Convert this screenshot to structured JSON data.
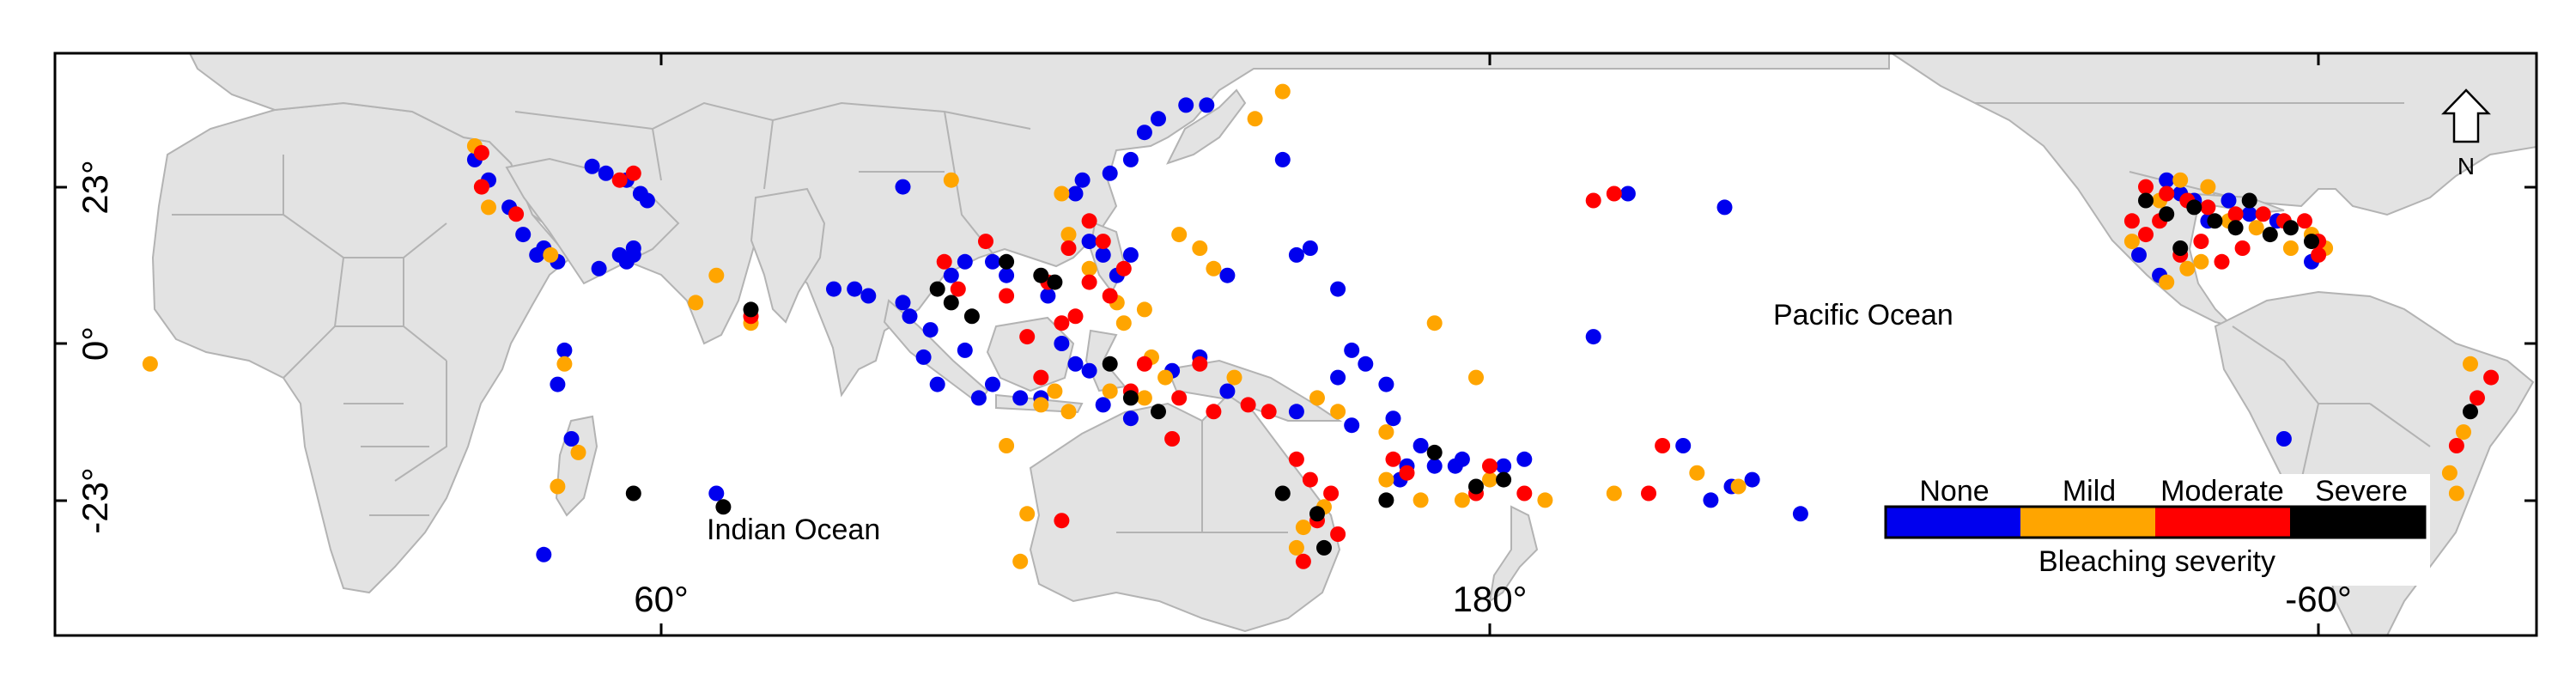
{
  "map": {
    "labels": {
      "indian_ocean": "Indian Ocean",
      "pacific_ocean": "Pacific Ocean"
    },
    "x_ticks": [
      "60°",
      "180°",
      "-60°"
    ],
    "y_ticks": [
      "23°",
      "0°",
      "-23°"
    ],
    "north_arrow_label": "N",
    "colors": {
      "land": "#e3e3e3",
      "border": "#b3b3b3",
      "frame": "#000000"
    }
  },
  "legend": {
    "title": "Bleaching severity",
    "categories": [
      {
        "label": "None",
        "color": "#0000ee"
      },
      {
        "label": "Mild",
        "color": "#ffa500"
      },
      {
        "label": "Moderate",
        "color": "#ff0000"
      },
      {
        "label": "Severe",
        "color": "#000000"
      }
    ]
  },
  "sites": {
    "none": [
      [
        33,
        27
      ],
      [
        35,
        24
      ],
      [
        38,
        20
      ],
      [
        40,
        16
      ],
      [
        43,
        14
      ],
      [
        45,
        12
      ],
      [
        42,
        13
      ],
      [
        46,
        -1
      ],
      [
        45,
        -6
      ],
      [
        47,
        -14
      ],
      [
        43,
        -31
      ],
      [
        50,
        26
      ],
      [
        52,
        25
      ],
      [
        55,
        24
      ],
      [
        57,
        22
      ],
      [
        58,
        21
      ],
      [
        54,
        13
      ],
      [
        56,
        14
      ],
      [
        51,
        11
      ],
      [
        56,
        13
      ],
      [
        55,
        12
      ],
      [
        68,
        -22
      ],
      [
        95,
        23
      ],
      [
        88,
        8
      ],
      [
        85,
        8
      ],
      [
        90,
        7
      ],
      [
        95,
        6
      ],
      [
        96,
        4
      ],
      [
        99,
        2
      ],
      [
        98,
        -2
      ],
      [
        100,
        -6
      ],
      [
        104,
        -1
      ],
      [
        106,
        -8
      ],
      [
        108,
        -6
      ],
      [
        112,
        -8
      ],
      [
        115,
        -8
      ],
      [
        120,
        -3
      ],
      [
        122,
        -4
      ],
      [
        118,
        0
      ],
      [
        116,
        7
      ],
      [
        110,
        10
      ],
      [
        108,
        12
      ],
      [
        104,
        12
      ],
      [
        102,
        10
      ],
      [
        122,
        15
      ],
      [
        124,
        13
      ],
      [
        126,
        10
      ],
      [
        128,
        13
      ],
      [
        120,
        22
      ],
      [
        121,
        24
      ],
      [
        125,
        25
      ],
      [
        128,
        27
      ],
      [
        130,
        31
      ],
      [
        132,
        33
      ],
      [
        136,
        35
      ],
      [
        139,
        35
      ],
      [
        150,
        27
      ],
      [
        142,
        10
      ],
      [
        152,
        13
      ],
      [
        154,
        14
      ],
      [
        160,
        -1
      ],
      [
        158,
        8
      ],
      [
        162,
        -3
      ],
      [
        165,
        -6
      ],
      [
        175,
        -18
      ],
      [
        176,
        -17
      ],
      [
        172,
        -18
      ],
      [
        168,
        -18
      ],
      [
        167,
        -20
      ],
      [
        185,
        -17
      ],
      [
        182,
        -18
      ],
      [
        215,
        -21
      ],
      [
        218,
        -20
      ],
      [
        212,
        -23
      ],
      [
        225,
        -25
      ],
      [
        208,
        -15
      ],
      [
        200,
        22
      ],
      [
        214,
        20
      ],
      [
        195,
        1
      ],
      [
        152,
        -10
      ],
      [
        158,
        -5
      ],
      [
        160,
        -12
      ],
      [
        170,
        -15
      ],
      [
        166,
        -11
      ],
      [
        128,
        -11
      ],
      [
        124,
        -9
      ],
      [
        134,
        -4
      ],
      [
        138,
        -2
      ],
      [
        142,
        -7
      ],
      [
        -82,
        24
      ],
      [
        -80,
        22
      ],
      [
        -78,
        21
      ],
      [
        -76,
        18
      ],
      [
        -73,
        21
      ],
      [
        -70,
        19
      ],
      [
        -66,
        18
      ],
      [
        -83,
        10
      ],
      [
        -86,
        13
      ],
      [
        -61,
        12
      ],
      [
        -65,
        -14
      ]
    ],
    "mild": [
      [
        -14,
        -3
      ],
      [
        33,
        29
      ],
      [
        34,
        23
      ],
      [
        35,
        20
      ],
      [
        44,
        13
      ],
      [
        46,
        -3
      ],
      [
        48,
        -16
      ],
      [
        45,
        -21
      ],
      [
        65,
        6
      ],
      [
        73,
        3
      ],
      [
        68,
        10
      ],
      [
        102,
        24
      ],
      [
        115,
        -9
      ],
      [
        117,
        -7
      ],
      [
        119,
        -10
      ],
      [
        125,
        -7
      ],
      [
        130,
        -8
      ],
      [
        133,
        -5
      ],
      [
        110,
        -15
      ],
      [
        113,
        -25
      ],
      [
        112,
        -32
      ],
      [
        118,
        22
      ],
      [
        119,
        16
      ],
      [
        122,
        11
      ],
      [
        126,
        6
      ],
      [
        130,
        5
      ],
      [
        127,
        3
      ],
      [
        131,
        -2
      ],
      [
        146,
        33
      ],
      [
        150,
        37
      ],
      [
        135,
        16
      ],
      [
        138,
        14
      ],
      [
        140,
        11
      ],
      [
        143,
        -5
      ],
      [
        155,
        -8
      ],
      [
        158,
        -10
      ],
      [
        165,
        -20
      ],
      [
        170,
        -23
      ],
      [
        176,
        -23
      ],
      [
        180,
        -20
      ],
      [
        188,
        -23
      ],
      [
        198,
        -22
      ],
      [
        210,
        -19
      ],
      [
        216,
        -21
      ],
      [
        172,
        3
      ],
      [
        178,
        -5
      ],
      [
        165,
        -13
      ],
      [
        156,
        -24
      ],
      [
        153,
        -27
      ],
      [
        152,
        -30
      ],
      [
        -83,
        21
      ],
      [
        -80,
        24
      ],
      [
        -76,
        23
      ],
      [
        -73,
        18
      ],
      [
        -69,
        17
      ],
      [
        -64,
        14
      ],
      [
        -77,
        12
      ],
      [
        -87,
        15
      ],
      [
        -82,
        9
      ],
      [
        -79,
        11
      ],
      [
        -38,
        -3
      ],
      [
        -39,
        -13
      ],
      [
        -41,
        -19
      ],
      [
        -40,
        -22
      ],
      [
        -61,
        16
      ],
      [
        -59,
        14
      ]
    ],
    "moderate": [
      [
        34,
        28
      ],
      [
        34,
        23
      ],
      [
        39,
        19
      ],
      [
        56,
        25
      ],
      [
        54,
        24
      ],
      [
        73,
        4
      ],
      [
        101,
        12
      ],
      [
        103,
        8
      ],
      [
        107,
        15
      ],
      [
        110,
        7
      ],
      [
        116,
        9
      ],
      [
        119,
        14
      ],
      [
        122,
        18
      ],
      [
        124,
        15
      ],
      [
        127,
        11
      ],
      [
        122,
        9
      ],
      [
        125,
        7
      ],
      [
        118,
        3
      ],
      [
        120,
        4
      ],
      [
        113,
        1
      ],
      [
        130,
        -3
      ],
      [
        135,
        -8
      ],
      [
        140,
        -10
      ],
      [
        145,
        -9
      ],
      [
        148,
        -10
      ],
      [
        152,
        -17
      ],
      [
        154,
        -20
      ],
      [
        157,
        -22
      ],
      [
        158,
        -28
      ],
      [
        155,
        -26
      ],
      [
        153,
        -32
      ],
      [
        118,
        -26
      ],
      [
        166,
        -17
      ],
      [
        168,
        -19
      ],
      [
        178,
        -22
      ],
      [
        180,
        -18
      ],
      [
        185,
        -22
      ],
      [
        203,
        -22
      ],
      [
        205,
        -15
      ],
      [
        195,
        21
      ],
      [
        198,
        22
      ],
      [
        134,
        -14
      ],
      [
        128,
        -7
      ],
      [
        115,
        -5
      ],
      [
        138,
        -3
      ],
      [
        -85,
        23
      ],
      [
        -82,
        22
      ],
      [
        -79,
        21
      ],
      [
        -76,
        20
      ],
      [
        -72,
        19
      ],
      [
        -68,
        19
      ],
      [
        -65,
        18
      ],
      [
        -62,
        18
      ],
      [
        -60,
        15
      ],
      [
        -85,
        16
      ],
      [
        -87,
        18
      ],
      [
        -80,
        13
      ],
      [
        -77,
        15
      ],
      [
        -74,
        12
      ],
      [
        -71,
        14
      ],
      [
        -35,
        -5
      ],
      [
        -37,
        -8
      ],
      [
        -40,
        -15
      ],
      [
        -60,
        13
      ],
      [
        -83,
        18
      ]
    ],
    "severe": [
      [
        56,
        -22
      ],
      [
        69,
        -24
      ],
      [
        73,
        5
      ],
      [
        100,
        8
      ],
      [
        102,
        6
      ],
      [
        105,
        4
      ],
      [
        110,
        12
      ],
      [
        115,
        10
      ],
      [
        117,
        9
      ],
      [
        125,
        -3
      ],
      [
        128,
        -8
      ],
      [
        132,
        -10
      ],
      [
        150,
        -22
      ],
      [
        155,
        -25
      ],
      [
        156,
        -30
      ],
      [
        165,
        -23
      ],
      [
        172,
        -16
      ],
      [
        178,
        -21
      ],
      [
        182,
        -20
      ],
      [
        -85,
        21
      ],
      [
        -82,
        19
      ],
      [
        -78,
        20
      ],
      [
        -75,
        18
      ],
      [
        -72,
        17
      ],
      [
        -70,
        21
      ],
      [
        -67,
        16
      ],
      [
        -64,
        17
      ],
      [
        -61,
        15
      ],
      [
        -38,
        -10
      ],
      [
        -80,
        14
      ]
    ]
  }
}
